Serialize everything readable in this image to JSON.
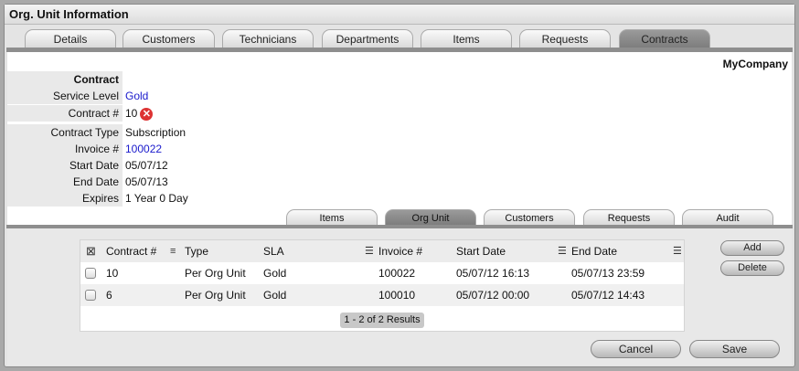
{
  "window": {
    "title": "Org. Unit Information"
  },
  "tabs": [
    {
      "label": "Details"
    },
    {
      "label": "Customers"
    },
    {
      "label": "Technicians"
    },
    {
      "label": "Departments"
    },
    {
      "label": "Items"
    },
    {
      "label": "Requests"
    },
    {
      "label": "Contracts",
      "active": true
    }
  ],
  "company": "MyCompany",
  "contract": {
    "section": "Contract",
    "fields": [
      {
        "label": "Service Level",
        "value": "Gold",
        "link": true
      },
      {
        "label": "Contract #",
        "value": "10",
        "icon": "remove-icon"
      },
      {
        "label": "Contract Type",
        "value": "Subscription"
      },
      {
        "label": "Invoice #",
        "value": "100022",
        "link": true
      },
      {
        "label": "Start Date",
        "value": "05/07/12"
      },
      {
        "label": "End Date",
        "value": "05/07/13"
      },
      {
        "label": "Expires",
        "value": "1 Year 0 Day"
      }
    ]
  },
  "subtabs": [
    {
      "label": "Items"
    },
    {
      "label": "Org Unit",
      "active": true
    },
    {
      "label": "Customers"
    },
    {
      "label": "Requests"
    },
    {
      "label": "Audit"
    }
  ],
  "table": {
    "columns": [
      "Contract #",
      "Type",
      "SLA",
      "Invoice #",
      "Start Date",
      "End Date"
    ],
    "rows": [
      [
        "10",
        "Per Org Unit",
        "Gold",
        "100022",
        "05/07/12 16:13",
        "05/07/13 23:59"
      ],
      [
        "6",
        "Per Org Unit",
        "Gold",
        "100010",
        "05/07/12 00:00",
        "05/07/12 14:43"
      ]
    ],
    "pagination": "1 - 2 of 2 Results"
  },
  "buttons": {
    "add": "Add",
    "delete": "Delete",
    "cancel": "Cancel",
    "save": "Save"
  }
}
